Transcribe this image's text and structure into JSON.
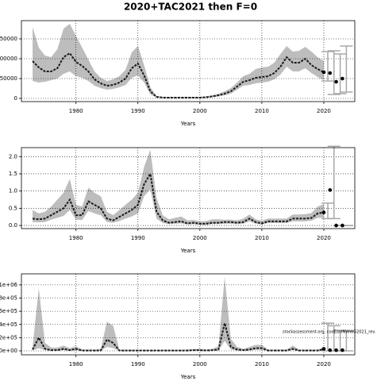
{
  "title": "2020+TAC2021 then F=0",
  "chart_data": [
    {
      "type": "line",
      "xlabel": "Years",
      "x": [
        1973,
        1974,
        1975,
        1976,
        1977,
        1978,
        1979,
        1980,
        1981,
        1982,
        1983,
        1984,
        1985,
        1986,
        1987,
        1988,
        1989,
        1990,
        1991,
        1992,
        1993,
        1994,
        1995,
        1996,
        1997,
        1998,
        1999,
        2000,
        2001,
        2002,
        2003,
        2004,
        2005,
        2006,
        2007,
        2008,
        2009,
        2010,
        2011,
        2012,
        2013,
        2014,
        2015,
        2016,
        2017,
        2018,
        2019,
        2020
      ],
      "values": [
        94000,
        78000,
        68000,
        68000,
        76000,
        104000,
        114000,
        92000,
        82000,
        68000,
        48000,
        38000,
        32000,
        34000,
        40000,
        50000,
        76000,
        88000,
        58000,
        18000,
        4000,
        2000,
        2000,
        2000,
        2000,
        2000,
        2000,
        2000,
        3000,
        5000,
        8000,
        12000,
        18000,
        30000,
        42000,
        46000,
        52000,
        54000,
        56000,
        64000,
        80000,
        104000,
        90000,
        90000,
        100000,
        84000,
        74000,
        66000
      ],
      "upper": [
        180000,
        128000,
        108000,
        104000,
        124000,
        176000,
        188000,
        158000,
        128000,
        98000,
        68000,
        52000,
        44000,
        48000,
        56000,
        72000,
        116000,
        132000,
        84000,
        28000,
        6000,
        4000,
        4000,
        4000,
        4000,
        4000,
        4000,
        4000,
        5000,
        8000,
        12000,
        18000,
        26000,
        40000,
        56000,
        62000,
        74000,
        78000,
        80000,
        90000,
        112000,
        132000,
        118000,
        120000,
        130000,
        118000,
        104000,
        94000
      ],
      "lower": [
        44000,
        40000,
        42000,
        46000,
        50000,
        62000,
        68000,
        56000,
        52000,
        44000,
        32000,
        26000,
        22000,
        24000,
        28000,
        34000,
        52000,
        58000,
        40000,
        10000,
        2000,
        1000,
        1000,
        1000,
        1000,
        1000,
        1000,
        1000,
        1500,
        3000,
        5000,
        8000,
        12000,
        22000,
        32000,
        34000,
        38000,
        40000,
        42000,
        48000,
        60000,
        80000,
        68000,
        68000,
        76000,
        64000,
        54000,
        46000
      ],
      "proj_x": [
        2020,
        2021,
        2022,
        2023
      ],
      "proj_values": [
        66000,
        64000,
        42000,
        50000
      ],
      "proj_lower": [
        44000,
        10000,
        12000,
        16000
      ],
      "proj_upper": [
        118000,
        120000,
        112000,
        132000
      ],
      "xlim": [
        1971.2,
        2025
      ],
      "xticks": [
        1980,
        1990,
        2000,
        2010,
        2020
      ],
      "ylim": [
        -8000,
        196000
      ],
      "yticks": [
        0,
        50000,
        100000,
        150000
      ],
      "grid": true,
      "band_color": "#bdbdbd",
      "line_color": "#1a1a1a",
      "proj_color": "#000000",
      "bar_color": "#a8a8a8"
    },
    {
      "type": "line",
      "xlabel": "Years",
      "x": [
        1973,
        1974,
        1975,
        1976,
        1977,
        1978,
        1979,
        1980,
        1981,
        1982,
        1983,
        1984,
        1985,
        1986,
        1987,
        1988,
        1989,
        1990,
        1991,
        1992,
        1993,
        1994,
        1995,
        1996,
        1997,
        1998,
        1999,
        2000,
        2001,
        2002,
        2003,
        2004,
        2005,
        2006,
        2007,
        2008,
        2009,
        2010,
        2011,
        2012,
        2013,
        2014,
        2015,
        2016,
        2017,
        2018,
        2019,
        2020
      ],
      "values": [
        0.2,
        0.18,
        0.2,
        0.3,
        0.4,
        0.5,
        0.75,
        0.3,
        0.3,
        0.7,
        0.6,
        0.5,
        0.2,
        0.15,
        0.25,
        0.35,
        0.45,
        0.6,
        1.2,
        1.5,
        0.4,
        0.15,
        0.08,
        0.1,
        0.12,
        0.06,
        0.08,
        0.05,
        0.05,
        0.08,
        0.08,
        0.1,
        0.1,
        0.08,
        0.1,
        0.2,
        0.1,
        0.06,
        0.12,
        0.12,
        0.12,
        0.12,
        0.2,
        0.2,
        0.2,
        0.22,
        0.35,
        0.38
      ],
      "upper": [
        0.45,
        0.35,
        0.4,
        0.55,
        0.75,
        0.95,
        1.35,
        0.6,
        0.55,
        1.1,
        0.95,
        0.85,
        0.4,
        0.3,
        0.45,
        0.6,
        0.75,
        0.95,
        1.7,
        2.2,
        0.8,
        0.3,
        0.18,
        0.22,
        0.26,
        0.15,
        0.16,
        0.12,
        0.13,
        0.18,
        0.18,
        0.17,
        0.17,
        0.15,
        0.2,
        0.32,
        0.18,
        0.14,
        0.2,
        0.2,
        0.2,
        0.2,
        0.32,
        0.32,
        0.33,
        0.36,
        0.55,
        0.62
      ],
      "lower": [
        0.1,
        0.09,
        0.1,
        0.17,
        0.22,
        0.28,
        0.45,
        0.17,
        0.16,
        0.42,
        0.35,
        0.3,
        0.1,
        0.08,
        0.13,
        0.2,
        0.26,
        0.35,
        0.85,
        1.05,
        0.2,
        0.07,
        0.04,
        0.05,
        0.06,
        0.03,
        0.04,
        0.02,
        0.02,
        0.04,
        0.04,
        0.05,
        0.05,
        0.04,
        0.05,
        0.12,
        0.05,
        0.03,
        0.07,
        0.07,
        0.07,
        0.07,
        0.12,
        0.12,
        0.12,
        0.14,
        0.22,
        0.23
      ],
      "proj_x": [
        2020,
        2021,
        2022,
        2023
      ],
      "proj_values": [
        0.38,
        1.03,
        0,
        0
      ],
      "proj_lower": [
        0.2,
        0.2,
        0,
        0
      ],
      "proj_upper": [
        0.65,
        2.3,
        0,
        0
      ],
      "xlim": [
        1971.2,
        2025
      ],
      "xticks": [
        1980,
        1990,
        2000,
        2010,
        2020
      ],
      "ylim": [
        -0.09,
        2.26
      ],
      "yticks": [
        {
          "value": 0,
          "label": "0.0"
        },
        {
          "value": 0.5,
          "label": "0.5"
        },
        {
          "value": 1,
          "label": "1.0"
        },
        {
          "value": 1.5,
          "label": "1.5"
        },
        {
          "value": 2,
          "label": "2.0"
        }
      ],
      "grid": true,
      "band_color": "#bdbdbd",
      "line_color": "#1a1a1a",
      "proj_color": "#000000",
      "bar_color": "#a8a8a8"
    },
    {
      "type": "line",
      "xlabel": "Years",
      "annotation": "stockassessment.org, codEastNWWG2021_rev.",
      "x": [
        1973,
        1974,
        1975,
        1976,
        1977,
        1978,
        1979,
        1980,
        1981,
        1982,
        1983,
        1984,
        1985,
        1986,
        1987,
        1988,
        1989,
        1990,
        1991,
        1992,
        1993,
        1994,
        1995,
        1996,
        1997,
        1998,
        1999,
        2000,
        2001,
        2002,
        2003,
        2004,
        2005,
        2006,
        2007,
        2008,
        2009,
        2010,
        2011,
        2012,
        2013,
        2014,
        2015,
        2016,
        2017,
        2018,
        2019,
        2020
      ],
      "values": [
        20000,
        200000,
        30000,
        10000,
        10000,
        30000,
        10000,
        30000,
        5000,
        5000,
        5000,
        5000,
        170000,
        120000,
        5000,
        5000,
        5000,
        5000,
        5000,
        5000,
        5000,
        5000,
        5000,
        5000,
        5000,
        5000,
        10000,
        10000,
        5000,
        10000,
        20000,
        420000,
        60000,
        20000,
        10000,
        20000,
        40000,
        40000,
        5000,
        5000,
        5000,
        5000,
        30000,
        5000,
        5000,
        5000,
        5000,
        20000
      ],
      "upper": [
        60000,
        950000,
        120000,
        50000,
        50000,
        80000,
        40000,
        70000,
        20000,
        20000,
        20000,
        30000,
        440000,
        380000,
        20000,
        15000,
        15000,
        15000,
        15000,
        15000,
        15000,
        15000,
        15000,
        15000,
        15000,
        20000,
        25000,
        30000,
        20000,
        30000,
        70000,
        1120000,
        180000,
        60000,
        30000,
        60000,
        90000,
        90000,
        20000,
        20000,
        20000,
        20000,
        80000,
        20000,
        20000,
        20000,
        20000,
        60000
      ],
      "lower": [
        5000,
        40000,
        10000,
        3000,
        3000,
        10000,
        3000,
        10000,
        1000,
        1000,
        1000,
        1000,
        60000,
        40000,
        1000,
        1000,
        1000,
        1000,
        1000,
        1000,
        1000,
        1000,
        1000,
        1000,
        1000,
        1000,
        3000,
        3000,
        1000,
        3000,
        5000,
        150000,
        20000,
        5000,
        3000,
        5000,
        15000,
        15000,
        1000,
        1000,
        1000,
        1000,
        10000,
        1000,
        1000,
        1000,
        1000,
        5000
      ],
      "proj_x": [
        2020,
        2021,
        2022,
        2023
      ],
      "proj_values": [
        30000,
        10000,
        10000,
        10000
      ],
      "proj_lower": [
        0,
        0,
        0,
        0
      ],
      "proj_upper": [
        420000,
        380000,
        310000,
        300000
      ],
      "xlim": [
        1971.2,
        2025
      ],
      "xticks": [
        1980,
        1990,
        2000,
        2010,
        2020
      ],
      "ylim": [
        -60000,
        1167000
      ],
      "yticks": [
        {
          "value": 0,
          "label": "0e+00"
        },
        {
          "value": 200000,
          "label": "2e+05"
        },
        {
          "value": 400000,
          "label": "4e+05"
        },
        {
          "value": 600000,
          "label": "6e+05"
        },
        {
          "value": 800000,
          "label": "8e+05"
        },
        {
          "value": 1000000,
          "label": "1e+06"
        }
      ],
      "grid": true,
      "band_color": "#bdbdbd",
      "line_color": "#1a1a1a",
      "proj_color": "#000000",
      "bar_color": "#a8a8a8"
    }
  ]
}
